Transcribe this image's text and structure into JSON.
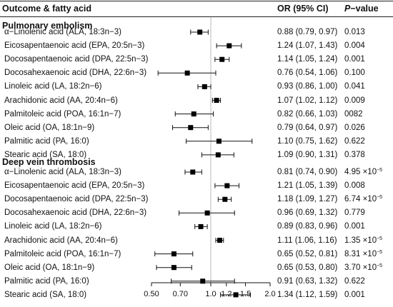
{
  "headers": {
    "outcome": "Outcome & fatty acid",
    "or": "OR (95% CI)",
    "p_italic": "P",
    "p_rest": "−value"
  },
  "chart_data": {
    "type": "forest",
    "x_scale": "log",
    "xlim": [
      0.5,
      2.0
    ],
    "reference_line": 1.0,
    "x_ticks": [
      0.5,
      0.7,
      1.0,
      1.2,
      1.5,
      2.0
    ],
    "x_tick_labels": [
      "0.50",
      "0.70",
      "1.0",
      "1.2",
      "1.5",
      "2.0"
    ],
    "groups": [
      {
        "title": "Pulmonary embolism",
        "rows": [
          {
            "label": "α−Linolenic acid (ALA, 18:3n−3)",
            "or": 0.88,
            "lo": 0.79,
            "hi": 0.97,
            "ci_text": "0.88 (0.79, 0.97)",
            "p": "0.013"
          },
          {
            "label": "Eicosapentaenoic acid (EPA, 20:5n−3)",
            "or": 1.24,
            "lo": 1.07,
            "hi": 1.43,
            "ci_text": "1.24 (1.07, 1.43)",
            "p": "0.004"
          },
          {
            "label": "Docosapentaenoic acid (DPA, 22:5n−3)",
            "or": 1.14,
            "lo": 1.05,
            "hi": 1.24,
            "ci_text": "1.14 (1.05, 1.24)",
            "p": "0.001"
          },
          {
            "label": "Docosahexaenoic acid (DHA, 22:6n−3)",
            "or": 0.76,
            "lo": 0.54,
            "hi": 1.06,
            "ci_text": "0.76 (0.54, 1.06)",
            "p": "0.100"
          },
          {
            "label": "Linoleic acid (LA, 18:2n−6)",
            "or": 0.93,
            "lo": 0.86,
            "hi": 1.0,
            "ci_text": "0.93 (0.86, 1.00)",
            "p": "0.041"
          },
          {
            "label": "Arachidonic acid (AA, 20:4n−6)",
            "or": 1.07,
            "lo": 1.02,
            "hi": 1.12,
            "ci_text": "1.07 (1.02, 1.12)",
            "p": "0.009"
          },
          {
            "label": "Palmitoleic acid (POA, 16:1n−7)",
            "or": 0.82,
            "lo": 0.66,
            "hi": 1.03,
            "ci_text": "0.82 (0.66, 1.03)",
            "p": "0082"
          },
          {
            "label": "Oleic acid (OA, 18:1n−9)",
            "or": 0.79,
            "lo": 0.64,
            "hi": 0.97,
            "ci_text": "0.79 (0.64, 0.97)",
            "p": "0.026"
          },
          {
            "label": "Palmitic acid (PA, 16:0)",
            "or": 1.1,
            "lo": 0.75,
            "hi": 1.62,
            "ci_text": "1.10 (0.75, 1.62)",
            "p": "0.622"
          },
          {
            "label": "Stearic acid (SA, 18:0)",
            "or": 1.09,
            "lo": 0.9,
            "hi": 1.31,
            "ci_text": "1.09 (0.90, 1.31)",
            "p": "0.378"
          }
        ]
      },
      {
        "title": "Deep vein thrombosis",
        "rows": [
          {
            "label": "α−Linolenic acid (ALA, 18:3n−3)",
            "or": 0.81,
            "lo": 0.74,
            "hi": 0.9,
            "ci_text": "0.81 (0.74, 0.90)",
            "p": "4.95 ×10",
            "p_exp": "−5"
          },
          {
            "label": "Eicosapentaenoic acid (EPA, 20:5n−3)",
            "or": 1.21,
            "lo": 1.05,
            "hi": 1.39,
            "ci_text": "1.21 (1.05, 1.39)",
            "p": "0.008"
          },
          {
            "label": "Docosapentaenoic acid (DPA, 22:5n−3)",
            "or": 1.18,
            "lo": 1.09,
            "hi": 1.27,
            "ci_text": "1.18 (1.09, 1.27)",
            "p": "6.74 ×10",
            "p_exp": "−5"
          },
          {
            "label": "Docosahexaenoic acid (DHA, 22:6n−3)",
            "or": 0.96,
            "lo": 0.69,
            "hi": 1.32,
            "ci_text": "0.96 (0.69, 1.32)",
            "p": "0.779"
          },
          {
            "label": "Linoleic acid (LA, 18:2n−6)",
            "or": 0.89,
            "lo": 0.83,
            "hi": 0.96,
            "ci_text": "0.89 (0.83, 0.96)",
            "p": "0.001"
          },
          {
            "label": "Arachidonic acid (AA, 20:4n−6)",
            "or": 1.11,
            "lo": 1.06,
            "hi": 1.16,
            "ci_text": "1.11 (1.06, 1.16)",
            "p": "1.35 ×10",
            "p_exp": "−5"
          },
          {
            "label": "Palmitoleic acid (POA, 16:1n−7)",
            "or": 0.65,
            "lo": 0.52,
            "hi": 0.81,
            "ci_text": "0.65 (0.52, 0.81)",
            "p": "8.31 ×10",
            "p_exp": "−5"
          },
          {
            "label": "Oleic acid (OA, 18:1n−9)",
            "or": 0.65,
            "lo": 0.53,
            "hi": 0.8,
            "ci_text": "0.65 (0.53, 0.80)",
            "p": "3.70 ×10",
            "p_exp": "−5"
          },
          {
            "label": "Palmitic acid (PA, 16:0)",
            "or": 0.91,
            "lo": 0.63,
            "hi": 1.32,
            "ci_text": "0.91 (0.63, 1.32)",
            "p": "0.622"
          },
          {
            "label": "Stearic acid (SA, 18:0)",
            "or": 1.34,
            "lo": 1.12,
            "hi": 1.59,
            "ci_text": "1.34 (1.12, 1.59)",
            "p": "0.001"
          }
        ]
      }
    ]
  }
}
